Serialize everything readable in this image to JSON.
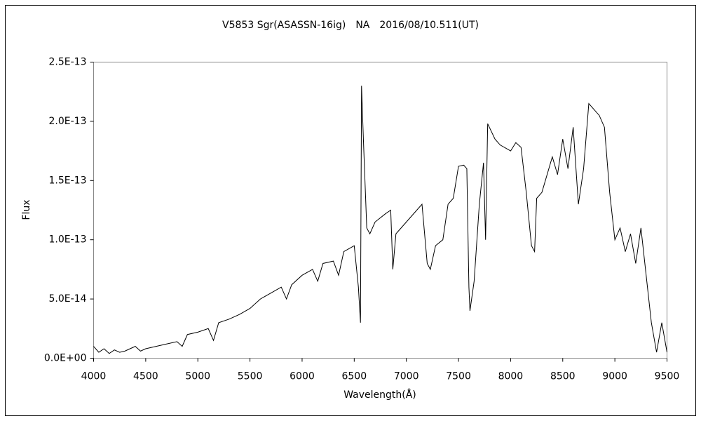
{
  "chart_data": {
    "type": "line",
    "title": "V5853 Sgr(ASASSN-16ig)　NA　2016/08/10.511(UT)",
    "x_label": "Wavelength(Å)",
    "y_label": "Flux",
    "x": [
      4000,
      4050,
      4100,
      4150,
      4200,
      4250,
      4300,
      4350,
      4400,
      4450,
      4500,
      4600,
      4700,
      4800,
      4850,
      4900,
      5000,
      5100,
      5150,
      5200,
      5300,
      5400,
      5500,
      5600,
      5700,
      5800,
      5850,
      5900,
      6000,
      6100,
      6150,
      6200,
      6300,
      6350,
      6400,
      6500,
      6540,
      6560,
      6570,
      6590,
      6620,
      6650,
      6700,
      6800,
      6850,
      6870,
      6900,
      7000,
      7100,
      7150,
      7200,
      7230,
      7280,
      7350,
      7400,
      7450,
      7500,
      7550,
      7580,
      7600,
      7610,
      7650,
      7700,
      7740,
      7760,
      7780,
      7850,
      7900,
      8000,
      8050,
      8100,
      8150,
      8200,
      8230,
      8250,
      8300,
      8400,
      8450,
      8500,
      8550,
      8600,
      8650,
      8700,
      8750,
      8800,
      8850,
      8900,
      8950,
      9000,
      9050,
      9100,
      9150,
      9200,
      9250,
      9300,
      9350,
      9400,
      9450,
      9500
    ],
    "series": [
      {
        "name": "Flux",
        "color": "#000000",
        "values": [
          1e-14,
          5e-15,
          8e-15,
          4e-15,
          7e-15,
          5e-15,
          6e-15,
          8e-15,
          1e-14,
          6e-15,
          8e-15,
          1e-14,
          1.2e-14,
          1.4e-14,
          1e-14,
          2e-14,
          2.2e-14,
          2.5e-14,
          1.5e-14,
          3e-14,
          3.3e-14,
          3.7e-14,
          4.2e-14,
          5e-14,
          5.5e-14,
          6e-14,
          5e-14,
          6.2e-14,
          7e-14,
          7.5e-14,
          6.5e-14,
          8e-14,
          8.2e-14,
          7e-14,
          9e-14,
          9.5e-14,
          6e-14,
          3e-14,
          2.3e-13,
          1.8e-13,
          1.1e-13,
          1.05e-13,
          1.15e-13,
          1.22e-13,
          1.25e-13,
          7.5e-14,
          1.05e-13,
          1.15e-13,
          1.25e-13,
          1.3e-13,
          8e-14,
          7.5e-14,
          9.5e-14,
          1e-13,
          1.3e-13,
          1.35e-13,
          1.62e-13,
          1.63e-13,
          1.6e-13,
          6e-14,
          4e-14,
          6.5e-14,
          1.3e-13,
          1.65e-13,
          1e-13,
          1.98e-13,
          1.85e-13,
          1.8e-13,
          1.75e-13,
          1.82e-13,
          1.78e-13,
          1.4e-13,
          9.5e-14,
          9e-14,
          1.35e-13,
          1.4e-13,
          1.7e-13,
          1.55e-13,
          1.85e-13,
          1.6e-13,
          1.95e-13,
          1.3e-13,
          1.6e-13,
          2.15e-13,
          2.1e-13,
          2.05e-13,
          1.95e-13,
          1.4e-13,
          1e-13,
          1.1e-13,
          9e-14,
          1.05e-13,
          8e-14,
          1.1e-13,
          7e-14,
          3e-14,
          5e-15,
          3e-14,
          5e-15
        ]
      }
    ],
    "xlim": [
      4000,
      9500
    ],
    "xticks": [
      4000,
      4500,
      5000,
      5500,
      6000,
      6500,
      7000,
      7500,
      8000,
      8500,
      9000,
      9500
    ],
    "ylim": [
      0,
      2.5e-13
    ],
    "yticks": [
      {
        "value": 0,
        "label": "0.0E+00"
      },
      {
        "value": 5e-14,
        "label": "5.0E-14"
      },
      {
        "value": 1e-13,
        "label": "1.0E-13"
      },
      {
        "value": 1.5e-13,
        "label": "1.5E-13"
      },
      {
        "value": 2e-13,
        "label": "2.0E-13"
      },
      {
        "value": 2.5e-13,
        "label": "2.5E-13"
      }
    ]
  }
}
